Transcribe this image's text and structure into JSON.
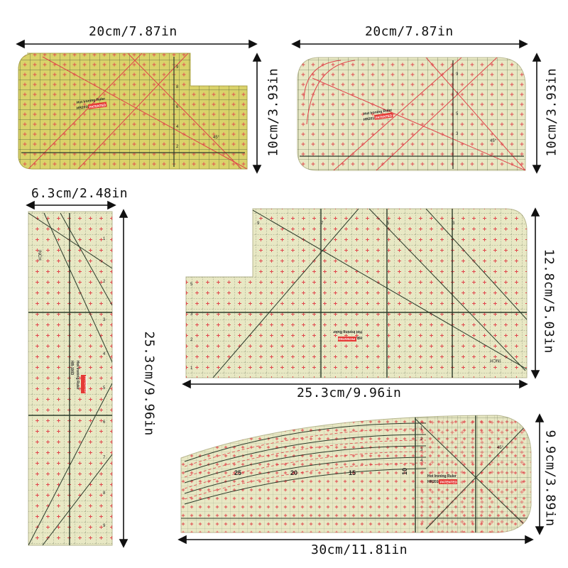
{
  "colors": {
    "ruler_fill_yellow": "#d9d36a",
    "ruler_fill_pale": "#e8e8c4",
    "grid_line": "#2a3a2a",
    "cross_mark": "#e0434a",
    "patent_badge": "#e53935"
  },
  "rulers": [
    {
      "name": "ruler-1",
      "width_label": "20cm/7.87in",
      "height_label": "10cm/3.93in",
      "brand": "Hot Ironing Ruler",
      "model": "HR2010 s",
      "patent": "PATENTED",
      "marks": [
        "1",
        "2",
        "3",
        "4",
        "5",
        "6",
        "7",
        "8",
        "9",
        "10",
        "45°",
        "45°"
      ]
    },
    {
      "name": "ruler-2",
      "width_label": "20cm/7.87in",
      "height_label": "10cm/3.93in",
      "brand": "Hot Ironing Ruler",
      "model": "HR2010",
      "patent": "PATENTED",
      "marks": [
        "1",
        "2",
        "3",
        "4",
        "5",
        "6",
        "7",
        "8",
        "9",
        "10",
        "45°",
        "45°"
      ]
    },
    {
      "name": "ruler-3",
      "width_label": "6.3cm/2.48in",
      "height_label": "25.3cm/9.96in",
      "brand": "Hot Ironing Ruler",
      "model": "HR-1903",
      "patent": "PATENTED",
      "inch_label": "INCH",
      "marks": [
        "1",
        "2",
        "3",
        "4",
        "5",
        "6",
        "7",
        "8",
        "9"
      ]
    },
    {
      "name": "ruler-4",
      "width_label": "25.3cm/9.96in",
      "height_label": "12.8cm/5.03in",
      "brand": "Hot Ironing Ruler",
      "model": "HR-1903",
      "patent": "PATENTED",
      "inch_label": "INCH",
      "marks": [
        "1",
        "2",
        "3",
        "4",
        "5",
        "6",
        "7",
        "8",
        "9"
      ]
    },
    {
      "name": "ruler-5",
      "width_label": "30cm/11.81in",
      "height_label": "9.9cm/3.89in",
      "brand": "Hot Ironing Ruler",
      "model": "HR2010",
      "patent": "PATENTED",
      "marks": [
        "10",
        "15",
        "20",
        "25",
        "1",
        "2",
        "3",
        "4",
        "45°"
      ]
    }
  ]
}
